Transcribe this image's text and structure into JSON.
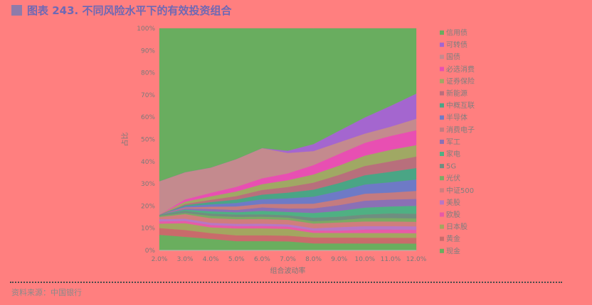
{
  "header": {
    "title": "图表 243. 不同风险水平下的有效投资组合"
  },
  "footer": {
    "source": "资料来源：中国银行"
  },
  "chart_data": {
    "type": "area",
    "stacked": true,
    "normalized": true,
    "title": "图表 243. 不同风险水平下的有效投资组合",
    "xlabel": "组合波动率",
    "ylabel": "占比",
    "x": [
      "2.0%",
      "3.0%",
      "4.0%",
      "5.0%",
      "6.0%",
      "7.0%",
      "8.0%",
      "9.0%",
      "10.0%",
      "11.0%",
      "12.0%"
    ],
    "y_ticks": [
      "0%",
      "10%",
      "20%",
      "30%",
      "40%",
      "50%",
      "60%",
      "70%",
      "80%",
      "90%",
      "100%"
    ],
    "ylim": [
      0,
      100
    ],
    "legend_position": "right",
    "series": [
      {
        "name": "现金",
        "color": "#6AAE5E",
        "values": [
          7,
          6,
          5,
          4,
          4,
          4,
          3,
          3,
          3,
          3,
          3
        ]
      },
      {
        "name": "黄金",
        "color": "#C96B6B",
        "values": [
          3,
          3,
          2.5,
          2.5,
          2.5,
          2.5,
          2.5,
          2.5,
          2.5,
          2.5,
          2.5
        ]
      },
      {
        "name": "日本股",
        "color": "#A3A660",
        "values": [
          2,
          3,
          2.5,
          3,
          3,
          3,
          2,
          2,
          2,
          2,
          2
        ]
      },
      {
        "name": "欧股",
        "color": "#E85AA6",
        "values": [
          1,
          1,
          1,
          1,
          1,
          1,
          1,
          1,
          1.5,
          1.5,
          1.5
        ]
      },
      {
        "name": "美股",
        "color": "#B877C4",
        "values": [
          1,
          1,
          1,
          1,
          1,
          1,
          1,
          1.5,
          1.5,
          1.5,
          1.5
        ]
      },
      {
        "name": "中证500",
        "color": "#D07D7D",
        "values": [
          1,
          2,
          2,
          2,
          2,
          2,
          2,
          2,
          2,
          2,
          2
        ]
      },
      {
        "name": "光伏",
        "color": "#7BAA64",
        "values": [
          0.5,
          0.5,
          1,
          1,
          1,
          1,
          1,
          1,
          1.5,
          1.5,
          1.5
        ]
      },
      {
        "name": "5G",
        "color": "#6F8E80",
        "values": [
          0.5,
          1,
          1,
          1,
          1,
          1,
          1.5,
          1.5,
          1.5,
          2,
          2
        ]
      },
      {
        "name": "家电",
        "color": "#4FB083",
        "values": [
          0,
          0.5,
          1,
          1,
          1.5,
          1.5,
          2,
          2.5,
          3,
          3,
          3.5
        ]
      },
      {
        "name": "军工",
        "color": "#8B70B5",
        "values": [
          0,
          0.5,
          1,
          1,
          1.5,
          1.5,
          2,
          2.5,
          3,
          3,
          3
        ]
      },
      {
        "name": "消费电子",
        "color": "#C47B80",
        "values": [
          0,
          0.5,
          1,
          1.5,
          1.5,
          2,
          2,
          2.5,
          3,
          3,
          3.5
        ]
      },
      {
        "name": "半导体",
        "color": "#6E7AC6",
        "values": [
          0,
          0.5,
          1,
          1.5,
          2,
          2.5,
          3,
          3.5,
          4,
          4.5,
          5
        ]
      },
      {
        "name": "中概互联",
        "color": "#4AA585",
        "values": [
          0,
          0.5,
          1,
          1.5,
          2,
          2.5,
          3,
          3.5,
          4,
          4.5,
          5
        ]
      },
      {
        "name": "新能源",
        "color": "#B86F7C",
        "values": [
          0,
          0.5,
          1,
          1.5,
          2,
          2.5,
          3,
          3.5,
          4,
          4.5,
          5
        ]
      },
      {
        "name": "证券保险",
        "color": "#A0A864",
        "values": [
          0,
          1,
          1.5,
          2,
          2.5,
          3,
          3.5,
          4,
          4.5,
          5,
          5
        ]
      },
      {
        "name": "必选消费",
        "color": "#E84FB2",
        "values": [
          0,
          1,
          1.5,
          2,
          2.5,
          3,
          4,
          5,
          5.5,
          6,
          6.5
        ]
      },
      {
        "name": "国债",
        "color": "#C48A8E",
        "values": [
          15,
          12,
          11,
          12,
          13,
          9,
          6,
          5,
          4,
          4,
          5
        ]
      },
      {
        "name": "可转债",
        "color": "#A466CF",
        "values": [
          0,
          0,
          0,
          0,
          0,
          1,
          3,
          5,
          7,
          9,
          11
        ]
      },
      {
        "name": "信用债",
        "color": "#69AD5F",
        "values": [
          68.5,
          63.5,
          60.5,
          56.5,
          51.5,
          54,
          49.5,
          44,
          38.5,
          33.5,
          28.5
        ]
      }
    ]
  }
}
